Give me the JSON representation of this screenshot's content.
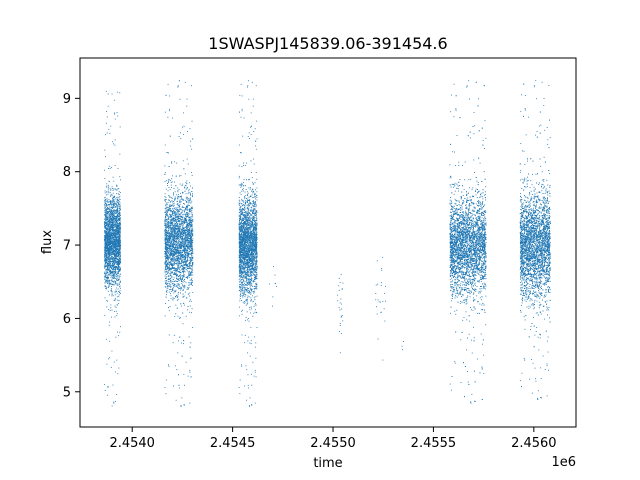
{
  "chart_data": {
    "type": "scatter",
    "title": "1SWASPJ145839.06-391454.6",
    "xlabel": "time",
    "ylabel": "flux",
    "x_offset_label": "1e6",
    "xlim": [
      2453740,
      2456210
    ],
    "ylim": [
      4.52,
      9.55
    ],
    "xticks": [
      2454000,
      2454500,
      2455000,
      2455500,
      2456000
    ],
    "xtick_labels": [
      "2.4540",
      "2.4545",
      "2.4550",
      "2.4555",
      "2.4560"
    ],
    "yticks": [
      5,
      6,
      7,
      8,
      9
    ],
    "ytick_labels": [
      "5",
      "6",
      "7",
      "8",
      "9"
    ],
    "grid": false,
    "marker_color": "#1f77b4",
    "clusters": [
      {
        "x_range": [
          2453860,
          2453940
        ],
        "y_center": 7.05,
        "y_spread": 0.55,
        "y_min": 4.8,
        "y_max": 9.2,
        "n_points": 2600
      },
      {
        "x_range": [
          2454160,
          2454300
        ],
        "y_center": 7.05,
        "y_spread": 0.6,
        "y_min": 4.75,
        "y_max": 9.3,
        "n_points": 3200
      },
      {
        "x_range": [
          2454530,
          2454620
        ],
        "y_center": 7.0,
        "y_spread": 0.6,
        "y_min": 4.75,
        "y_max": 9.3,
        "n_points": 2700
      },
      {
        "x_range": [
          2454680,
          2454720
        ],
        "y_center": 6.5,
        "y_spread": 0.4,
        "y_min": 5.9,
        "y_max": 6.9,
        "n_points": 8
      },
      {
        "x_range": [
          2455020,
          2455050
        ],
        "y_center": 6.2,
        "y_spread": 0.5,
        "y_min": 5.1,
        "y_max": 6.8,
        "n_points": 25
      },
      {
        "x_range": [
          2455210,
          2455260
        ],
        "y_center": 6.4,
        "y_spread": 0.6,
        "y_min": 5.4,
        "y_max": 7.5,
        "n_points": 25
      },
      {
        "x_range": [
          2455340,
          2455370
        ],
        "y_center": 5.6,
        "y_spread": 0.1,
        "y_min": 5.5,
        "y_max": 5.7,
        "n_points": 3
      },
      {
        "x_range": [
          2455580,
          2455760
        ],
        "y_center": 7.0,
        "y_spread": 0.6,
        "y_min": 4.8,
        "y_max": 9.3,
        "n_points": 3800
      },
      {
        "x_range": [
          2455930,
          2456080
        ],
        "y_center": 7.0,
        "y_spread": 0.65,
        "y_min": 4.85,
        "y_max": 9.3,
        "n_points": 3400
      }
    ]
  }
}
